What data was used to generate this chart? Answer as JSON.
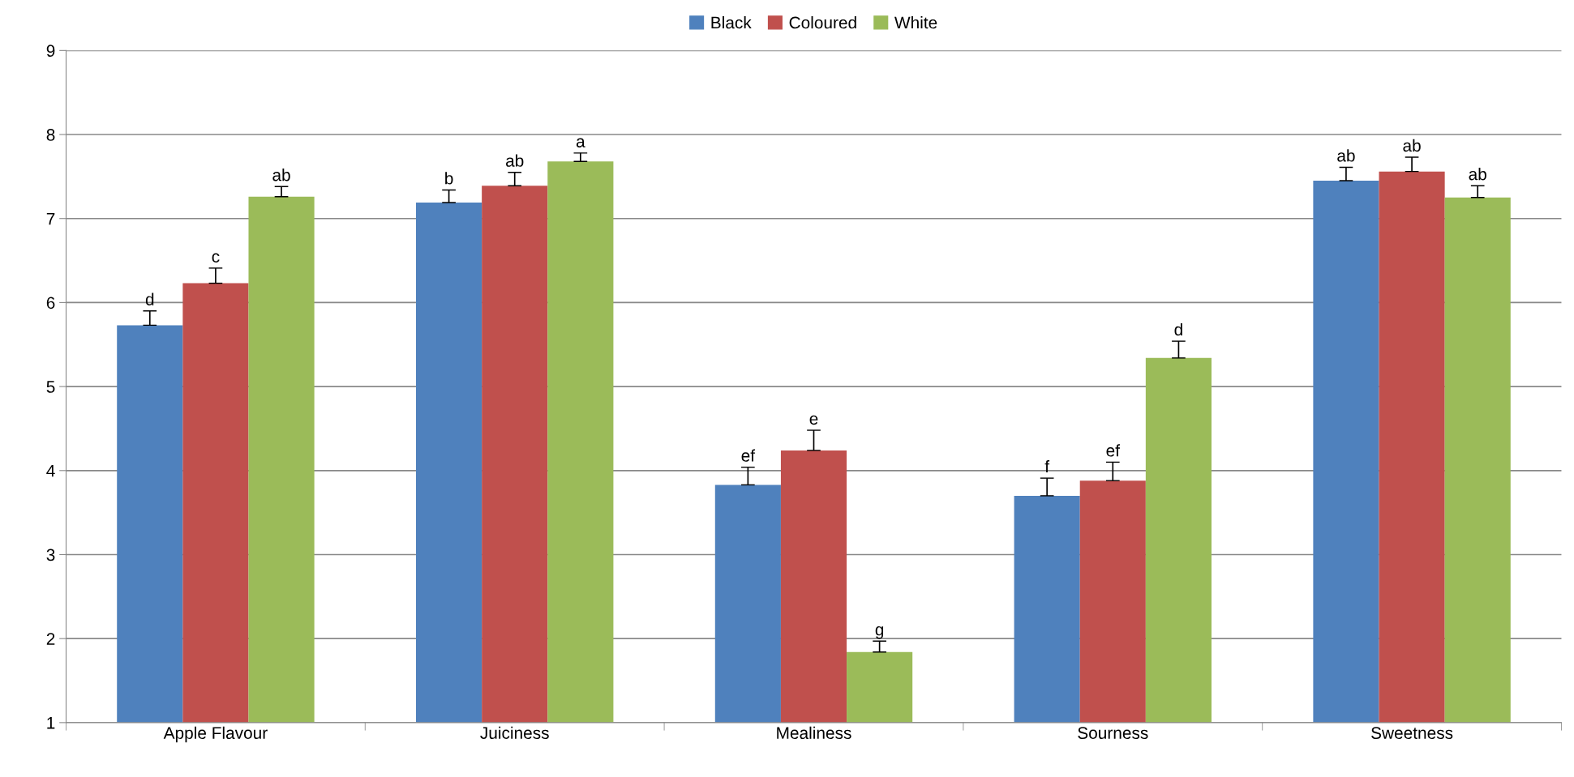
{
  "chart_data": {
    "type": "bar",
    "categories": [
      "Apple Flavour",
      "Juiciness",
      "Mealiness",
      "Sourness",
      "Sweetness"
    ],
    "series": [
      {
        "name": "Black",
        "color": "#4f81bd",
        "values": [
          5.73,
          7.19,
          3.83,
          3.7,
          7.45
        ],
        "errors": [
          [
            5.73,
            5.9
          ],
          [
            7.19,
            7.34
          ],
          [
            3.83,
            4.04
          ],
          [
            3.7,
            3.91
          ],
          [
            7.45,
            7.61
          ]
        ],
        "value_labels": [
          "d",
          "b",
          "ef",
          "f",
          "ab"
        ]
      },
      {
        "name": "Coloured",
        "color": "#c0504d",
        "values": [
          6.23,
          7.39,
          4.24,
          3.88,
          7.56
        ],
        "errors": [
          [
            6.23,
            6.41
          ],
          [
            7.39,
            7.55
          ],
          [
            4.24,
            4.48
          ],
          [
            3.88,
            4.1
          ],
          [
            7.56,
            7.73
          ]
        ],
        "value_labels": [
          "c",
          "ab",
          "e",
          "ef",
          "ab"
        ]
      },
      {
        "name": "White",
        "color": "#9bbb59",
        "values": [
          7.26,
          7.68,
          1.84,
          5.34,
          7.25
        ],
        "errors": [
          [
            7.26,
            7.38
          ],
          [
            7.68,
            7.78
          ],
          [
            1.84,
            1.97
          ],
          [
            5.34,
            5.54
          ],
          [
            7.25,
            7.39
          ]
        ],
        "value_labels": [
          "ab",
          "a",
          "g",
          "d",
          "ab"
        ]
      }
    ],
    "ylim": [
      1,
      9
    ],
    "yticks": [
      1,
      2,
      3,
      4,
      5,
      6,
      7,
      8,
      9
    ],
    "grid": "y",
    "legend": "top"
  }
}
